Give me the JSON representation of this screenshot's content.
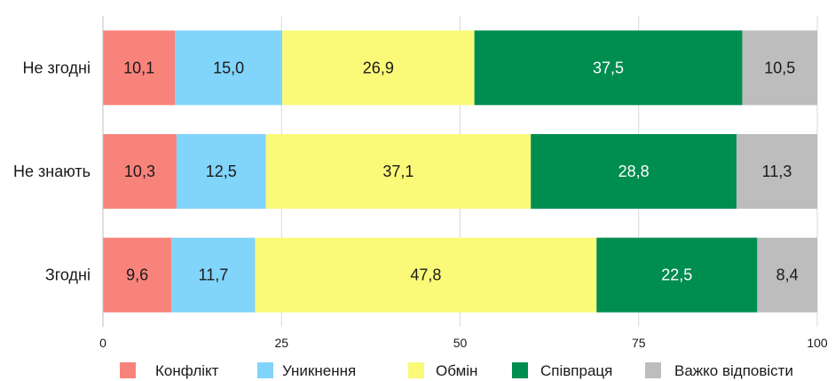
{
  "chart_data": {
    "type": "bar",
    "orientation": "horizontal",
    "stacked": true,
    "categories": [
      "Не згодні",
      "Не знають",
      "Згодні"
    ],
    "series": [
      {
        "name": "Конфлікт",
        "color": "#f8837b",
        "values": [
          10.1,
          10.3,
          9.6
        ],
        "labels": [
          "10,1",
          "10,3",
          "9,6"
        ],
        "label_color": "#1a1a1a"
      },
      {
        "name": "Уникнення",
        "color": "#81d4fa",
        "values": [
          15.0,
          12.5,
          11.7
        ],
        "labels": [
          "15,0",
          "12,5",
          "11,7"
        ],
        "label_color": "#1a1a1a"
      },
      {
        "name": "Обмін",
        "color": "#fafa78",
        "values": [
          26.9,
          37.1,
          47.8
        ],
        "labels": [
          "26,9",
          "37,1",
          "47,8"
        ],
        "label_color": "#1a1a1a"
      },
      {
        "name": "Співпраця",
        "color": "#008d50",
        "values": [
          37.5,
          28.8,
          22.5
        ],
        "labels": [
          "37,5",
          "28,8",
          "22,5"
        ],
        "label_color": "#ffffff"
      },
      {
        "name": "Важко відповісти",
        "color": "#bdbdbd",
        "values": [
          10.5,
          11.3,
          8.4
        ],
        "labels": [
          "10,5",
          "11,3",
          "8,4"
        ],
        "label_color": "#1a1a1a"
      }
    ],
    "xlim": [
      0,
      100
    ],
    "xticks": [
      0,
      25,
      50,
      75,
      100
    ],
    "grid": true,
    "legend_position": "bottom",
    "title": "",
    "xlabel": "",
    "ylabel": ""
  }
}
